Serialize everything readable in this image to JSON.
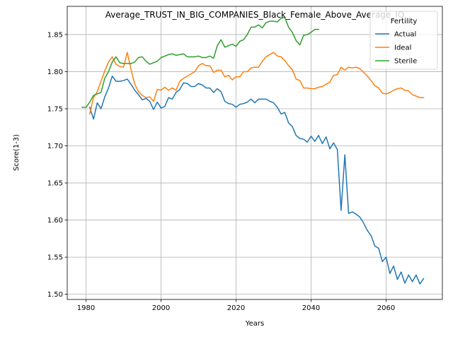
{
  "chart_data": {
    "type": "line",
    "title": "Average_TRUST_IN_BIG_COMPANIES_Black_Female_Above_Average_IQ",
    "xlabel": "Years",
    "ylabel": "Score(1-3)",
    "xlim": [
      1975,
      2075
    ],
    "ylim": [
      1.493,
      1.888
    ],
    "xticks": [
      1980,
      2000,
      2020,
      2040,
      2060
    ],
    "yticks": [
      1.5,
      1.55,
      1.6,
      1.65,
      1.7,
      1.75,
      1.8,
      1.85
    ],
    "grid": true,
    "legend": {
      "title": "Fertility",
      "placement": "top-right"
    },
    "series": [
      {
        "name": "Actual",
        "color": "#1f77b4",
        "x": [
          1981,
          1982,
          1983,
          1984,
          1985,
          1986,
          1987,
          1988,
          1989,
          1990,
          1991,
          1992,
          1993,
          1994,
          1995,
          1996,
          1997,
          1998,
          1999,
          2000,
          2001,
          2002,
          2003,
          2004,
          2005,
          2006,
          2007,
          2008,
          2009,
          2010,
          2011,
          2012,
          2013,
          2014,
          2015,
          2016,
          2017,
          2018,
          2019,
          2020,
          2021,
          2022,
          2023,
          2024,
          2025,
          2026,
          2027,
          2028,
          2029,
          2030,
          2031,
          2032,
          2033,
          2034,
          2035,
          2036,
          2037,
          2038,
          2039,
          2040,
          2041,
          2042,
          2043,
          2044,
          2045,
          2046,
          2047,
          2048,
          2049,
          2050,
          2051,
          2052,
          2053,
          2054,
          2055,
          2056,
          2057,
          2058,
          2059,
          2060,
          2061,
          2062,
          2063,
          2064,
          2065,
          2066,
          2067,
          2068,
          2069,
          2070
        ],
        "y": [
          1.752,
          1.736,
          1.758,
          1.75,
          1.766,
          1.778,
          1.794,
          1.787,
          1.787,
          1.788,
          1.79,
          1.783,
          1.775,
          1.769,
          1.762,
          1.764,
          1.76,
          1.749,
          1.759,
          1.751,
          1.753,
          1.765,
          1.763,
          1.772,
          1.776,
          1.785,
          1.784,
          1.78,
          1.78,
          1.784,
          1.782,
          1.778,
          1.778,
          1.772,
          1.777,
          1.773,
          1.76,
          1.757,
          1.756,
          1.752,
          1.756,
          1.757,
          1.759,
          1.763,
          1.758,
          1.763,
          1.763,
          1.763,
          1.76,
          1.758,
          1.752,
          1.743,
          1.745,
          1.731,
          1.726,
          1.714,
          1.71,
          1.709,
          1.705,
          1.713,
          1.706,
          1.714,
          1.703,
          1.712,
          1.696,
          1.704,
          1.695,
          1.613,
          1.688,
          1.609,
          1.611,
          1.608,
          1.604,
          1.596,
          1.586,
          1.579,
          1.565,
          1.562,
          1.544,
          1.55,
          1.528,
          1.538,
          1.52,
          1.53,
          1.515,
          1.526,
          1.517,
          1.526,
          1.514,
          1.521
        ]
      },
      {
        "name": "Ideal",
        "color": "#ff7f0e",
        "x": [
          1981,
          1982,
          1983,
          1984,
          1985,
          1986,
          1987,
          1988,
          1989,
          1990,
          1991,
          1992,
          1993,
          1994,
          1995,
          1996,
          1997,
          1998,
          1999,
          2000,
          2001,
          2002,
          2003,
          2004,
          2005,
          2006,
          2007,
          2008,
          2009,
          2010,
          2011,
          2012,
          2013,
          2014,
          2015,
          2016,
          2017,
          2018,
          2019,
          2020,
          2021,
          2022,
          2023,
          2024,
          2025,
          2026,
          2027,
          2028,
          2029,
          2030,
          2031,
          2032,
          2033,
          2034,
          2035,
          2036,
          2037,
          2038,
          2039,
          2040,
          2041,
          2042,
          2043,
          2044,
          2045,
          2046,
          2047,
          2048,
          2049,
          2050,
          2051,
          2052,
          2053,
          2054,
          2055,
          2056,
          2057,
          2058,
          2059,
          2060,
          2061,
          2062,
          2063,
          2064,
          2065,
          2066,
          2067,
          2068,
          2069,
          2070
        ],
        "y": [
          1.743,
          1.765,
          1.773,
          1.787,
          1.801,
          1.813,
          1.82,
          1.81,
          1.807,
          1.806,
          1.826,
          1.803,
          1.783,
          1.773,
          1.768,
          1.765,
          1.766,
          1.76,
          1.776,
          1.775,
          1.779,
          1.775,
          1.778,
          1.775,
          1.787,
          1.791,
          1.794,
          1.797,
          1.8,
          1.808,
          1.811,
          1.808,
          1.808,
          1.799,
          1.802,
          1.802,
          1.793,
          1.795,
          1.789,
          1.793,
          1.793,
          1.8,
          1.8,
          1.805,
          1.806,
          1.806,
          1.814,
          1.82,
          1.823,
          1.826,
          1.821,
          1.82,
          1.815,
          1.808,
          1.803,
          1.79,
          1.788,
          1.778,
          1.778,
          1.777,
          1.777,
          1.779,
          1.78,
          1.783,
          1.786,
          1.795,
          1.796,
          1.806,
          1.802,
          1.806,
          1.805,
          1.806,
          1.804,
          1.799,
          1.794,
          1.788,
          1.781,
          1.778,
          1.771,
          1.77,
          1.772,
          1.775,
          1.777,
          1.778,
          1.775,
          1.774,
          1.769,
          1.767,
          1.765,
          1.765
        ]
      },
      {
        "name": "Sterile",
        "color": "#2ca02c",
        "x": [
          1979,
          1980,
          1981,
          1982,
          1983,
          1984,
          1985,
          1986,
          1987,
          1988,
          1989,
          1990,
          1991,
          1992,
          1993,
          1994,
          1995,
          1996,
          1997,
          1998,
          1999,
          2000,
          2001,
          2002,
          2003,
          2004,
          2005,
          2006,
          2007,
          2008,
          2009,
          2010,
          2011,
          2012,
          2013,
          2014,
          2015,
          2016,
          2017,
          2018,
          2019,
          2020,
          2021,
          2022,
          2023,
          2024,
          2025,
          2026,
          2027,
          2028,
          2029,
          2030,
          2031,
          2032,
          2033,
          2034,
          2035,
          2036,
          2037,
          2038,
          2039,
          2040,
          2041,
          2042
        ],
        "y": [
          1.752,
          1.752,
          1.759,
          1.768,
          1.77,
          1.772,
          1.791,
          1.8,
          1.813,
          1.82,
          1.812,
          1.811,
          1.811,
          1.811,
          1.813,
          1.819,
          1.82,
          1.814,
          1.81,
          1.812,
          1.814,
          1.819,
          1.821,
          1.823,
          1.824,
          1.822,
          1.823,
          1.824,
          1.82,
          1.82,
          1.82,
          1.821,
          1.819,
          1.819,
          1.821,
          1.818,
          1.835,
          1.843,
          1.833,
          1.835,
          1.837,
          1.834,
          1.841,
          1.843,
          1.85,
          1.86,
          1.86,
          1.863,
          1.859,
          1.866,
          1.868,
          1.868,
          1.867,
          1.872,
          1.873,
          1.86,
          1.853,
          1.842,
          1.836,
          1.849,
          1.85,
          1.853,
          1.857,
          1.857
        ]
      }
    ]
  }
}
